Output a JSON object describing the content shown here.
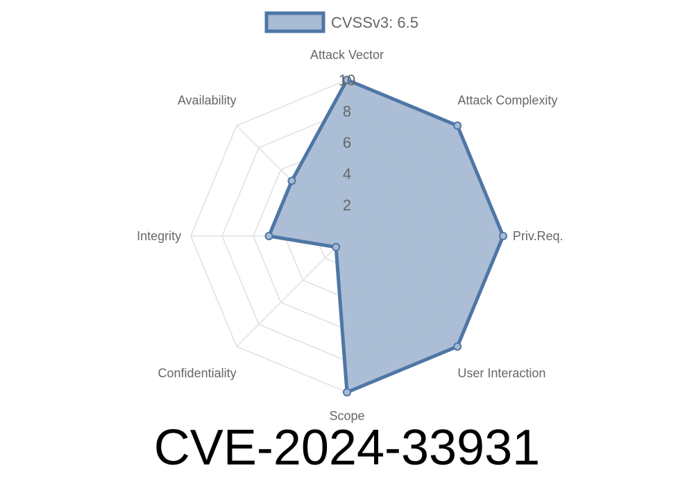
{
  "chart_data": {
    "type": "radar",
    "axes": [
      "Attack Vector",
      "Attack Complexity",
      "Priv.Req.",
      "User Interaction",
      "Scope",
      "Confidentiality",
      "Integrity",
      "Availability"
    ],
    "series": [
      {
        "name": "CVSSv3: 6.5",
        "values": [
          10,
          10,
          10,
          10,
          10,
          1,
          5,
          5
        ]
      }
    ],
    "rlim": [
      0,
      10
    ],
    "ticks": [
      2,
      4,
      6,
      8,
      10
    ],
    "legend": "top",
    "grid": true,
    "colors": {
      "stroke": "#4e76a6",
      "fill": "#a8bbd3",
      "grid": "#e0e0e0"
    }
  },
  "title": "CVE-2024-33931"
}
